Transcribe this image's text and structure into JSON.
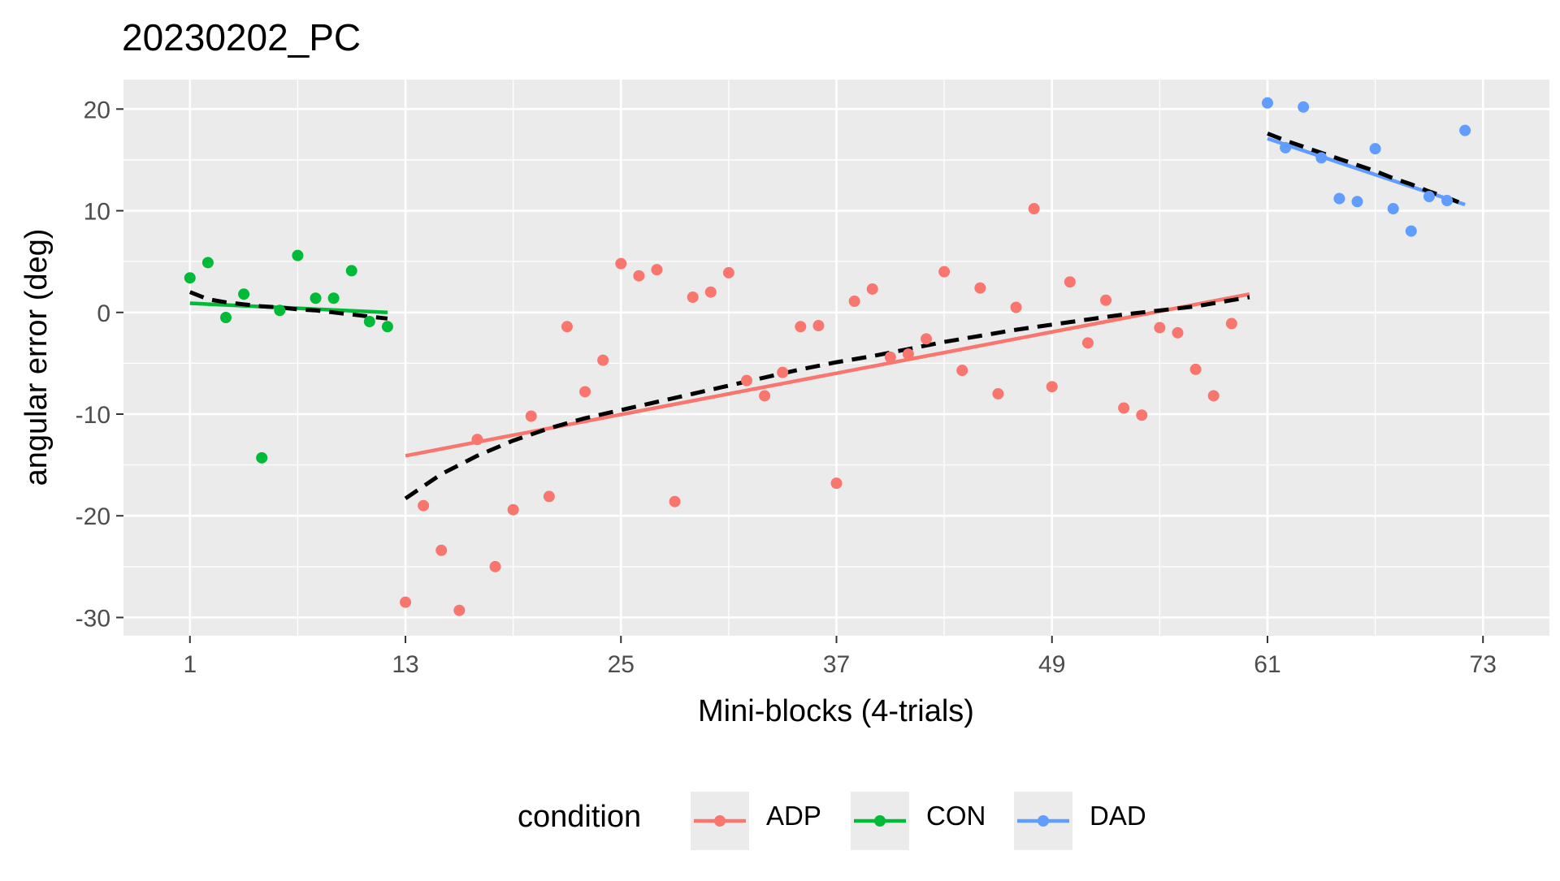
{
  "chart_data": {
    "type": "scatter",
    "title": "20230202_PC",
    "xlabel": "Mini-blocks (4-trials)",
    "ylabel": "angular error (deg)",
    "xlim": [
      -2.7,
      76.7
    ],
    "ylim": [
      -31.8,
      22.9
    ],
    "x_ticks": [
      1,
      13,
      25,
      37,
      49,
      61,
      73
    ],
    "y_ticks": [
      20,
      10,
      0,
      -10,
      -20,
      -30
    ],
    "grid": true,
    "legend": {
      "title": "condition",
      "position": "bottom",
      "items": [
        "ADP",
        "CON",
        "DAD"
      ]
    },
    "colors": {
      "ADP": "#F8766D",
      "CON": "#00BA38",
      "DAD": "#619CFF",
      "trend": "#000000",
      "panel": "#EBEBEB",
      "grid": "#FFFFFF"
    },
    "series": [
      {
        "name": "CON",
        "x": [
          1,
          2,
          3,
          4,
          5,
          6,
          7,
          8,
          9,
          10,
          11,
          12
        ],
        "y": [
          3.4,
          4.9,
          -0.5,
          1.8,
          -14.3,
          0.2,
          5.6,
          1.4,
          1.4,
          4.1,
          -0.9,
          -1.4
        ],
        "fit_linear": [
          [
            1,
            0.9
          ],
          [
            12,
            0.0
          ]
        ],
        "fit_smooth": [
          [
            1,
            2.0
          ],
          [
            2,
            1.3
          ],
          [
            3,
            1.0
          ],
          [
            4,
            0.8
          ],
          [
            5,
            0.6
          ],
          [
            6,
            0.5
          ],
          [
            7,
            0.3
          ],
          [
            8,
            0.2
          ],
          [
            9,
            0.0
          ],
          [
            10,
            -0.2
          ],
          [
            11,
            -0.4
          ],
          [
            12,
            -0.6
          ]
        ]
      },
      {
        "name": "ADP",
        "x": [
          13,
          14,
          15,
          16,
          17,
          18,
          19,
          20,
          21,
          22,
          23,
          24,
          25,
          26,
          27,
          28,
          29,
          30,
          31,
          32,
          33,
          34,
          35,
          36,
          37,
          38,
          39,
          40,
          41,
          42,
          43,
          44,
          45,
          46,
          47,
          48,
          49,
          50,
          51,
          52,
          53,
          54,
          55,
          56,
          57,
          58,
          59,
          60
        ],
        "y": [
          -28.5,
          -19,
          -23.4,
          -29.3,
          -12.5,
          -25,
          -19.4,
          -10.2,
          -18.1,
          -1.4,
          -7.8,
          -4.7,
          4.8,
          3.6,
          4.2,
          -18.6,
          1.5,
          2,
          3.9,
          -6.7,
          -8.2,
          -5.9,
          -1.4,
          -1.3,
          -16.8,
          1.1,
          2.3,
          -4.4,
          -4.1,
          -2.6,
          4,
          -5.7,
          2.4,
          -8,
          0.5,
          10.2,
          -7.3,
          3,
          -3,
          1.2,
          -9.4,
          -10.1,
          -1.5,
          -2,
          -5.6,
          -8.2,
          -1.1,
          null
        ],
        "fit_linear": [
          [
            13,
            -14.1
          ],
          [
            60,
            1.8
          ]
        ],
        "fit_smooth": [
          [
            13,
            -18.3
          ],
          [
            15,
            -15.9
          ],
          [
            17,
            -14.1
          ],
          [
            19,
            -12.6
          ],
          [
            21,
            -11.4
          ],
          [
            23,
            -10.4
          ],
          [
            25,
            -9.6
          ],
          [
            27,
            -8.8
          ],
          [
            29,
            -8.0
          ],
          [
            31,
            -7.2
          ],
          [
            33,
            -6.4
          ],
          [
            35,
            -5.6
          ],
          [
            37,
            -4.9
          ],
          [
            39,
            -4.3
          ],
          [
            41,
            -3.6
          ],
          [
            43,
            -2.9
          ],
          [
            45,
            -2.3
          ],
          [
            47,
            -1.7
          ],
          [
            49,
            -1.2
          ],
          [
            51,
            -0.7
          ],
          [
            53,
            -0.2
          ],
          [
            55,
            0.2
          ],
          [
            57,
            0.6
          ],
          [
            59,
            1.2
          ],
          [
            60,
            1.5
          ]
        ]
      },
      {
        "name": "DAD",
        "x": [
          61,
          62,
          63,
          64,
          65,
          66,
          67,
          68,
          69,
          70,
          71,
          72
        ],
        "y": [
          20.6,
          16.2,
          20.2,
          15.2,
          11.2,
          10.9,
          16.1,
          10.2,
          8,
          11.4,
          11,
          17.9
        ],
        "fit_linear": [
          [
            61,
            17.1
          ],
          [
            72,
            10.6
          ]
        ],
        "fit_smooth": [
          [
            61,
            17.6
          ],
          [
            62,
            16.9
          ],
          [
            63,
            16.3
          ],
          [
            64,
            15.7
          ],
          [
            65,
            15.1
          ],
          [
            66,
            14.5
          ],
          [
            67,
            13.9
          ],
          [
            68,
            13.2
          ],
          [
            69,
            12.6
          ],
          [
            70,
            11.9
          ],
          [
            71,
            11.3
          ],
          [
            72,
            10.6
          ]
        ]
      }
    ]
  }
}
